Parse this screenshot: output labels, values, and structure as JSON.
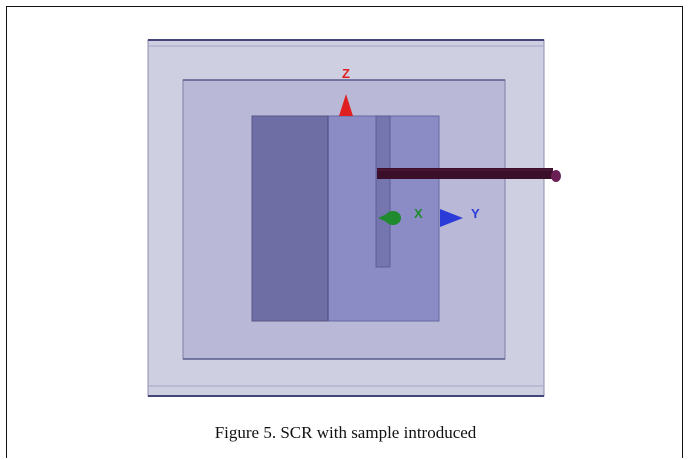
{
  "caption": "Figure 5. SCR with sample introduced",
  "axes": {
    "z_label": "Z",
    "x_label": "X",
    "y_label": "Y"
  },
  "colors": {
    "outer_box": "#c9c9dd",
    "inner_box": "#b3b3d3",
    "cavity_dark": "#6b6ba1",
    "cavity_light": "#8c8cc7",
    "probe": "#3b0f2a",
    "z_axis": "#e02020",
    "x_axis": "#1f8a2e",
    "y_axis": "#2b3bd8"
  }
}
